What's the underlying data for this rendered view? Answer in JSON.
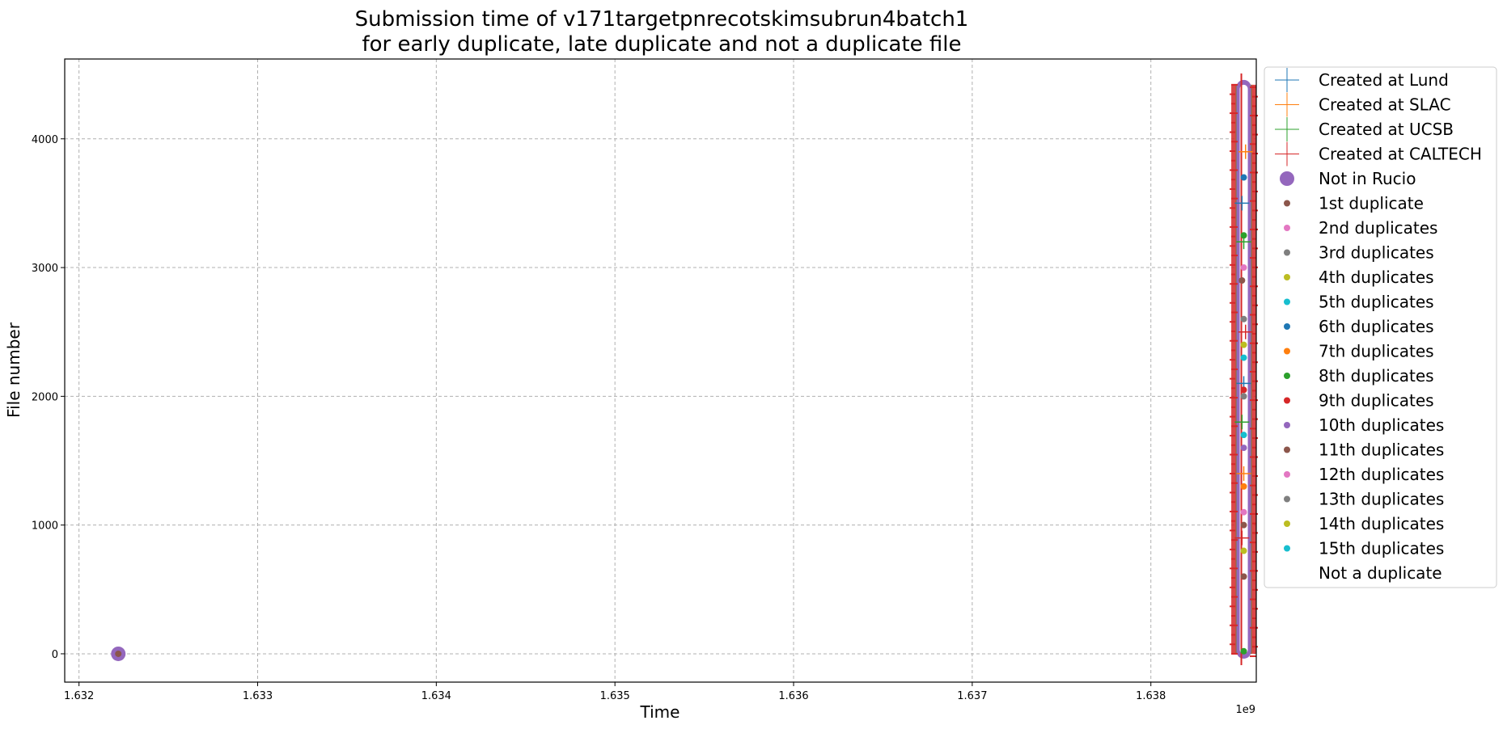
{
  "chart_data": {
    "type": "scatter",
    "title_line1": "Submission time of v171targetpnrecotskimsubrun4batch1",
    "title_line2": "for early duplicate, late duplicate and not a duplicate file",
    "xlabel": "Time",
    "ylabel": "File number",
    "x_offset_text": "1e9",
    "xlim": [
      1.63192,
      1.63859
    ],
    "ylim": [
      -220,
      4620
    ],
    "x_ticks": [
      1.632,
      1.633,
      1.634,
      1.635,
      1.636,
      1.637,
      1.638
    ],
    "x_tick_labels": [
      "1.632",
      "1.633",
      "1.634",
      "1.635",
      "1.636",
      "1.637",
      "1.638"
    ],
    "y_ticks": [
      0,
      1000,
      2000,
      3000,
      4000
    ],
    "y_tick_labels": [
      "0",
      "1000",
      "2000",
      "3000",
      "4000"
    ],
    "grid": true,
    "legend_position": "outside-right",
    "cluster": {
      "x_center": 1.63852,
      "x_half_width": 7e-05,
      "y_min": 0,
      "y_max": 4420
    },
    "series": [
      {
        "name": "Created at Lund",
        "marker": "plus",
        "color": "#1f77b4",
        "points": [
          [
            1.63852,
            2100
          ],
          [
            1.63851,
            3500
          ]
        ]
      },
      {
        "name": "Created at SLAC",
        "marker": "plus",
        "color": "#ff7f0e",
        "points": [
          [
            1.63852,
            1400
          ],
          [
            1.63853,
            3900
          ]
        ]
      },
      {
        "name": "Created at UCSB",
        "marker": "plus",
        "color": "#2ca02c",
        "points": [
          [
            1.63851,
            1800
          ],
          [
            1.63852,
            3200
          ]
        ]
      },
      {
        "name": "Created at CALTECH",
        "marker": "plus",
        "color": "#d62728",
        "points": [
          [
            1.63851,
            900
          ],
          [
            1.63853,
            2500
          ]
        ]
      },
      {
        "name": "Not in Rucio",
        "marker": "big-dot",
        "color": "#9467bd",
        "points": [
          [
            1.63222,
            0
          ]
        ]
      },
      {
        "name": "1st duplicate",
        "marker": "dot",
        "color": "#8c564b",
        "points": [
          [
            1.63222,
            0
          ],
          [
            1.63852,
            600
          ],
          [
            1.63851,
            2900
          ]
        ]
      },
      {
        "name": "2nd duplicates",
        "marker": "dot",
        "color": "#e377c2",
        "points": [
          [
            1.63852,
            1100
          ]
        ]
      },
      {
        "name": "3rd duplicates",
        "marker": "dot",
        "color": "#7f7f7f",
        "points": [
          [
            1.63852,
            2000
          ]
        ]
      },
      {
        "name": "4th duplicates",
        "marker": "dot",
        "color": "#bcbd22",
        "points": [
          [
            1.63852,
            2400
          ]
        ]
      },
      {
        "name": "5th duplicates",
        "marker": "dot",
        "color": "#17becf",
        "points": [
          [
            1.63852,
            1700
          ]
        ]
      },
      {
        "name": "6th duplicates",
        "marker": "dot",
        "color": "#1f77b4",
        "points": [
          [
            1.63852,
            3700
          ]
        ]
      },
      {
        "name": "7th duplicates",
        "marker": "dot",
        "color": "#ff7f0e",
        "points": [
          [
            1.63852,
            1300
          ]
        ]
      },
      {
        "name": "8th duplicates",
        "marker": "dot",
        "color": "#2ca02c",
        "points": [
          [
            1.63852,
            3250
          ],
          [
            1.63852,
            20
          ]
        ]
      },
      {
        "name": "9th duplicates",
        "marker": "dot",
        "color": "#d62728",
        "points": [
          [
            1.63852,
            2050
          ]
        ]
      },
      {
        "name": "10th duplicates",
        "marker": "dot",
        "color": "#9467bd",
        "points": [
          [
            1.63852,
            1600
          ]
        ]
      },
      {
        "name": "11th duplicates",
        "marker": "dot",
        "color": "#8c564b",
        "points": [
          [
            1.63852,
            1000
          ]
        ]
      },
      {
        "name": "12th duplicates",
        "marker": "dot",
        "color": "#e377c2",
        "points": [
          [
            1.63852,
            3000
          ]
        ]
      },
      {
        "name": "13th duplicates",
        "marker": "dot",
        "color": "#7f7f7f",
        "points": [
          [
            1.63852,
            2600
          ]
        ]
      },
      {
        "name": "14th duplicates",
        "marker": "dot",
        "color": "#bcbd22",
        "points": [
          [
            1.63852,
            800
          ]
        ]
      },
      {
        "name": "15th duplicates",
        "marker": "dot",
        "color": "#17becf",
        "points": [
          [
            1.63852,
            2300
          ]
        ]
      },
      {
        "name": "Not a duplicate",
        "marker": "none",
        "color": "#ffffff",
        "points": []
      }
    ]
  }
}
